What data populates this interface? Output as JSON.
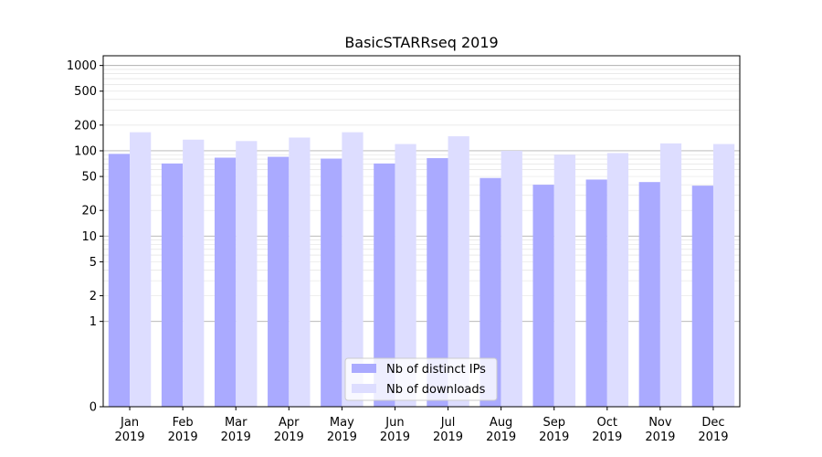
{
  "chart_data": {
    "type": "bar",
    "title": "BasicSTARRseq 2019",
    "xlabel": "",
    "ylabel": "",
    "yscale": "symlog",
    "ylim": [
      0,
      1300
    ],
    "yticks": [
      0,
      1,
      2,
      5,
      10,
      20,
      50,
      100,
      200,
      500,
      1000
    ],
    "grid": "y",
    "legend_position": "bottom-center",
    "categories": [
      {
        "month": "Jan",
        "year": "2019"
      },
      {
        "month": "Feb",
        "year": "2019"
      },
      {
        "month": "Mar",
        "year": "2019"
      },
      {
        "month": "Apr",
        "year": "2019"
      },
      {
        "month": "May",
        "year": "2019"
      },
      {
        "month": "Jun",
        "year": "2019"
      },
      {
        "month": "Jul",
        "year": "2019"
      },
      {
        "month": "Aug",
        "year": "2019"
      },
      {
        "month": "Sep",
        "year": "2019"
      },
      {
        "month": "Oct",
        "year": "2019"
      },
      {
        "month": "Nov",
        "year": "2019"
      },
      {
        "month": "Dec",
        "year": "2019"
      }
    ],
    "series": [
      {
        "name": "Nb of distinct IPs",
        "color": "#aaaaff",
        "values": [
          92,
          71,
          83,
          85,
          81,
          71,
          82,
          48,
          40,
          46,
          43,
          39
        ]
      },
      {
        "name": "Nb of downloads",
        "color": "#ddddff",
        "values": [
          165,
          135,
          130,
          143,
          165,
          120,
          148,
          100,
          90,
          94,
          122,
          120
        ]
      }
    ]
  }
}
